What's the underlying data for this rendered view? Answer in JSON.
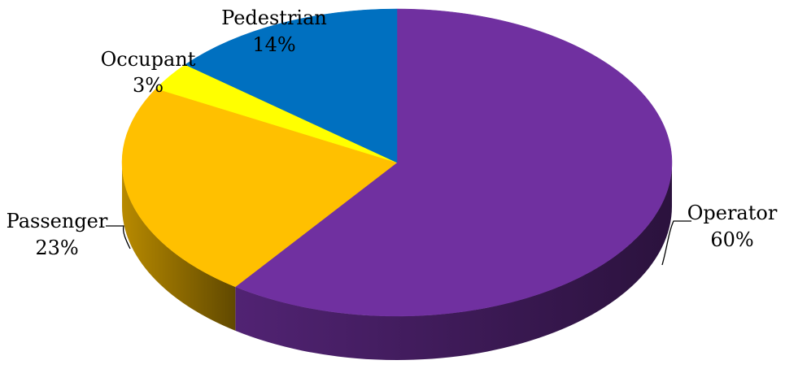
{
  "chart_data": {
    "type": "pie",
    "title": "",
    "three_d": true,
    "start_angle_deg": 90,
    "direction": "clockwise",
    "legend": "none",
    "slices": [
      {
        "label": "Operator",
        "value": 60,
        "value_label": "60%",
        "color": "#7030A0"
      },
      {
        "label": "Passenger",
        "value": 23,
        "value_label": "23%",
        "color": "#FFC000"
      },
      {
        "label": "Occupant",
        "value": 3,
        "value_label": "3%",
        "color": "#FFFF00"
      },
      {
        "label": "Pedestrian",
        "value": 14,
        "value_label": "14%",
        "color": "#0070C0"
      }
    ]
  }
}
